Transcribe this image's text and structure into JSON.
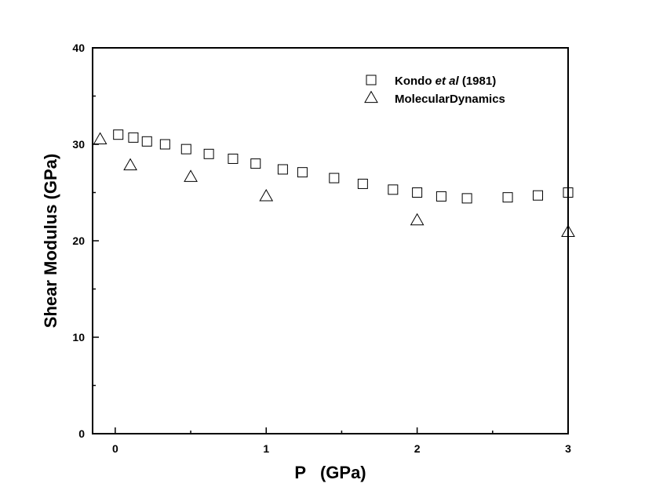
{
  "chart_data": {
    "type": "scatter",
    "title": "",
    "xlabel": "P   (GPa)",
    "ylabel": "Shear Modulus (GPa)",
    "xlim": [
      -0.15,
      3.0
    ],
    "ylim": [
      0,
      40
    ],
    "x_ticks": [
      "0",
      "1",
      "2",
      "3"
    ],
    "y_ticks": [
      "0",
      "10",
      "20",
      "30",
      "40"
    ],
    "grid": false,
    "legend_position": "top-right",
    "series": [
      {
        "name_parts": [
          "Kondo ",
          "et al",
          " (1981)"
        ],
        "marker": "square",
        "x": [
          0.02,
          0.12,
          0.21,
          0.33,
          0.47,
          0.62,
          0.78,
          0.93,
          1.11,
          1.24,
          1.45,
          1.64,
          1.84,
          2.0,
          2.16,
          2.33,
          2.6,
          2.8,
          3.0
        ],
        "y": [
          31.0,
          30.7,
          30.3,
          30.0,
          29.5,
          29.0,
          28.5,
          28.0,
          27.4,
          27.1,
          26.5,
          25.9,
          25.3,
          25.0,
          24.6,
          24.4,
          24.5,
          24.7,
          25.0
        ]
      },
      {
        "name": "MolecularDynamics",
        "marker": "triangle",
        "x": [
          -0.1,
          0.1,
          0.5,
          1.0,
          2.0,
          3.0
        ],
        "y": [
          30.5,
          27.8,
          26.6,
          24.6,
          22.1,
          20.9
        ]
      }
    ]
  }
}
